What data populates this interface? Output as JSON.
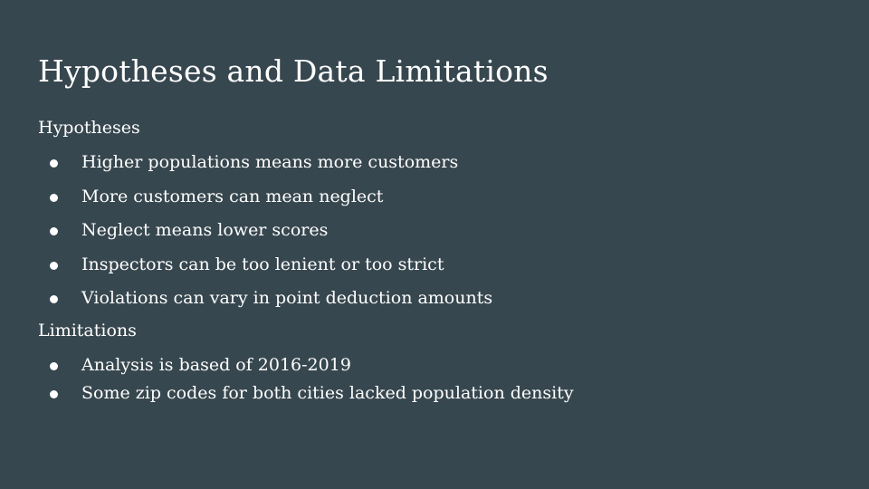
{
  "slide": {
    "title": "Hypotheses and Data Limitations",
    "sections": [
      {
        "heading": "Hypotheses",
        "bullets": [
          "Higher populations means more customers",
          "More customers can mean neglect",
          "Neglect means lower scores",
          "Inspectors can be too lenient or too strict",
          "Violations can vary in point deduction amounts"
        ]
      },
      {
        "heading": "Limitations",
        "bullets": [
          "Analysis is based of 2016-2019",
          "Some zip codes for both cities lacked population density"
        ]
      }
    ]
  },
  "colors": {
    "background": "#37474f",
    "text": "#ffffff"
  }
}
